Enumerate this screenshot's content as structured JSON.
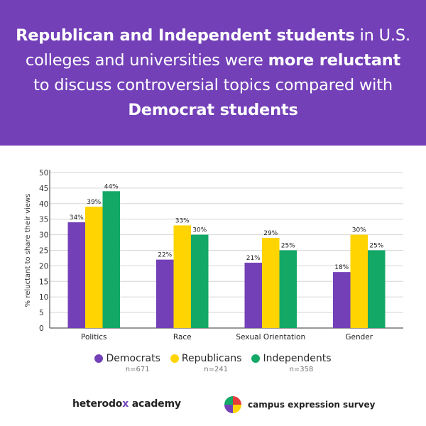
{
  "headline": {
    "p1_bold": "Republican and Independent students",
    "p2": " in U.S. colleges and universities were ",
    "p3_bold": "more reluctant",
    "p4": " to discuss controversial topics compared with ",
    "p5_bold": "Democrat students"
  },
  "chart_data": {
    "type": "bar",
    "ylabel": "% reluctant to share their views",
    "ylim": [
      0,
      50
    ],
    "yticks": [
      "0",
      "5",
      "10",
      "15",
      "20",
      "25",
      "30",
      "35",
      "40",
      "45",
      "50"
    ],
    "categories": [
      "Politics",
      "Race",
      "Sexual Orientation",
      "Gender"
    ],
    "series": [
      {
        "name": "Democrats",
        "values": [
          34,
          22,
          21,
          18
        ],
        "labels": [
          "34%",
          "22%",
          "21%",
          "18%"
        ],
        "color": "#7340b8"
      },
      {
        "name": "Republicans",
        "values": [
          39,
          33,
          29,
          30
        ],
        "labels": [
          "39%",
          "33%",
          "29%",
          "30%"
        ],
        "color": "#ffd400"
      },
      {
        "name": "Independents",
        "values": [
          44,
          30,
          25,
          25
        ],
        "labels": [
          "44%",
          "30%",
          "25%",
          "25%"
        ],
        "color": "#13a866"
      }
    ],
    "grid": true
  },
  "legend": [
    {
      "label": "Democrats",
      "n": "n=671",
      "color": "#7340b8"
    },
    {
      "label": "Republicans",
      "n": "n=241",
      "color": "#ffd400"
    },
    {
      "label": "Independents",
      "n": "n=358",
      "color": "#13a866"
    }
  ],
  "footer": {
    "hxa_pre": "heterodo",
    "hxa_x": "x",
    "hxa_post": " academy",
    "ces": "campus expression survey"
  },
  "colors": {
    "banner": "#7340b8",
    "accent_purple": "#7340b8",
    "accent_yellow": "#ffd400",
    "accent_green": "#13a866"
  }
}
